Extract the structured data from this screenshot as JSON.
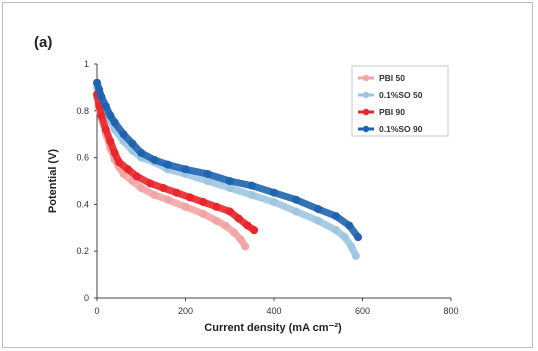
{
  "panel_label": "(a)",
  "chart_data": {
    "type": "line",
    "title": "",
    "xlabel": "Current density (mA cm⁻²)",
    "ylabel": "Potential (V)",
    "xlim": [
      0,
      800
    ],
    "ylim": [
      0,
      1
    ],
    "xticks": [
      "0",
      "200",
      "400",
      "600",
      "800"
    ],
    "yticks": [
      "0",
      "0.2",
      "0.4",
      "0.6",
      "0.8",
      "1"
    ],
    "grid": false,
    "legend_position": "top-right",
    "series": [
      {
        "name": "PBI 50",
        "color": "#f2a5a5",
        "x": [
          0,
          5,
          10,
          20,
          30,
          40,
          50,
          60,
          80,
          100,
          130,
          160,
          200,
          240,
          270,
          290,
          310,
          325,
          335
        ],
        "y": [
          0.86,
          0.81,
          0.77,
          0.7,
          0.64,
          0.59,
          0.56,
          0.53,
          0.5,
          0.47,
          0.44,
          0.42,
          0.39,
          0.36,
          0.33,
          0.31,
          0.28,
          0.25,
          0.22
        ]
      },
      {
        "name": "0.1%SO 50",
        "color": "#9fc6e0",
        "x": [
          0,
          5,
          10,
          20,
          30,
          40,
          60,
          80,
          100,
          130,
          160,
          200,
          250,
          300,
          350,
          400,
          450,
          500,
          540,
          560,
          575,
          585
        ],
        "y": [
          0.9,
          0.87,
          0.84,
          0.8,
          0.76,
          0.72,
          0.67,
          0.63,
          0.6,
          0.58,
          0.55,
          0.53,
          0.5,
          0.47,
          0.44,
          0.41,
          0.37,
          0.33,
          0.29,
          0.26,
          0.22,
          0.18
        ]
      },
      {
        "name": "PBI 90",
        "color": "#e8262c",
        "x": [
          0,
          5,
          10,
          20,
          30,
          40,
          50,
          70,
          90,
          120,
          150,
          180,
          210,
          240,
          270,
          300,
          320,
          340,
          355
        ],
        "y": [
          0.87,
          0.82,
          0.78,
          0.72,
          0.67,
          0.62,
          0.58,
          0.55,
          0.52,
          0.49,
          0.47,
          0.45,
          0.43,
          0.41,
          0.39,
          0.37,
          0.34,
          0.31,
          0.29
        ]
      },
      {
        "name": "0.1%SO 90",
        "color": "#1e64b0",
        "x": [
          0,
          5,
          10,
          20,
          30,
          40,
          60,
          80,
          100,
          130,
          160,
          200,
          250,
          300,
          350,
          400,
          450,
          500,
          540,
          570,
          590
        ],
        "y": [
          0.92,
          0.89,
          0.86,
          0.82,
          0.78,
          0.75,
          0.7,
          0.66,
          0.62,
          0.59,
          0.57,
          0.55,
          0.53,
          0.5,
          0.48,
          0.45,
          0.42,
          0.38,
          0.35,
          0.31,
          0.26
        ]
      }
    ]
  }
}
